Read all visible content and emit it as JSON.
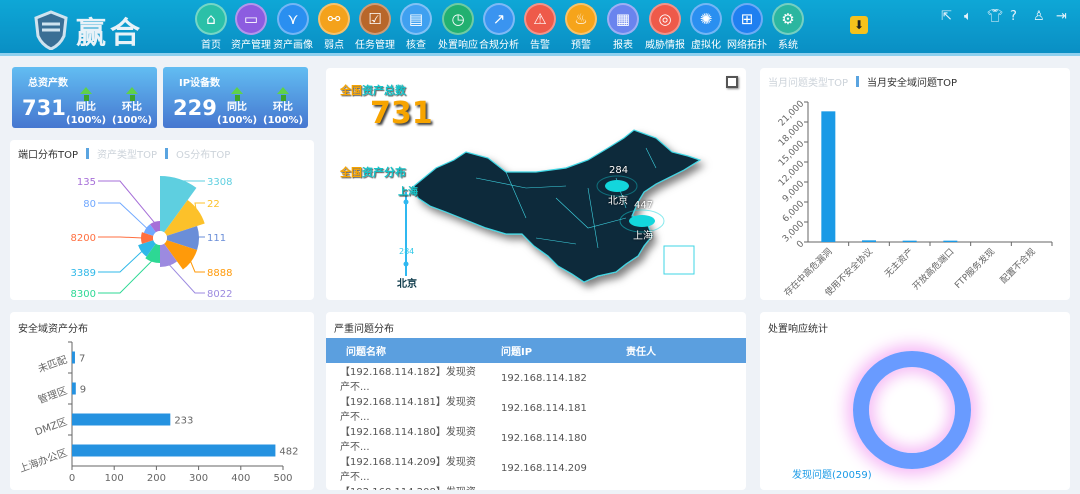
{
  "header": {
    "logo_text": "赢合",
    "nav": [
      {
        "label": "首页",
        "icon": "home-icon",
        "color": "#2bc0a8"
      },
      {
        "label": "资产管理",
        "icon": "monitor-icon",
        "color": "#8c5ce0"
      },
      {
        "label": "资产画像",
        "icon": "graph-icon",
        "color": "#2a8ff0"
      },
      {
        "label": "弱点",
        "icon": "broken-link-icon",
        "color": "#f4a21c"
      },
      {
        "label": "任务管理",
        "icon": "clipboard-icon",
        "color": "#b8672a"
      },
      {
        "label": "核查",
        "icon": "checklist-icon",
        "color": "#3fa0f0"
      },
      {
        "label": "处置响应",
        "icon": "stopwatch-icon",
        "color": "#22b070"
      },
      {
        "label": "合规分析",
        "icon": "trend-icon",
        "color": "#3a94f0"
      },
      {
        "label": "告警",
        "icon": "warning-icon",
        "color": "#ee5a4a"
      },
      {
        "label": "预警",
        "icon": "alarm-light-icon",
        "color": "#f6a41a"
      },
      {
        "label": "报表",
        "icon": "report-icon",
        "color": "#6a84ee"
      },
      {
        "label": "威胁情报",
        "icon": "radar-icon",
        "color": "#ee5a4a"
      },
      {
        "label": "虚拟化",
        "icon": "network-hub-icon",
        "color": "#2a8ff0"
      },
      {
        "label": "网络拓扑",
        "icon": "topology-icon",
        "color": "#1f7ff0"
      },
      {
        "label": "系统",
        "icon": "gear-icon",
        "color": "#2bb6a0"
      }
    ],
    "tools": [
      "external-link-icon",
      "volume-icon",
      "shirt-icon",
      "help-icon",
      "user-icon",
      "logout-icon"
    ]
  },
  "cards": [
    {
      "title": "总资产数",
      "value": "731",
      "yoy_label": "同比",
      "yoy": "(100%)",
      "mom_label": "环比",
      "mom": "(100%)"
    },
    {
      "title": "IP设备数",
      "value": "229",
      "yoy_label": "同比",
      "yoy": "(100%)",
      "mom_label": "环比",
      "mom": "(100%)"
    }
  ],
  "port_panel": {
    "tabs": [
      "端口分布TOP",
      "资产类型TOP",
      "OS分布TOP"
    ]
  },
  "map_panel": {
    "total_title_a": "全国",
    "total_title_b": "资产总数",
    "total": "731",
    "dist_title_a": "全国",
    "dist_title_b": "资产分布",
    "legend_top": "上海",
    "legend_mid": "284",
    "legend_bottom": "北京",
    "points": [
      {
        "city": "北京",
        "value": "284"
      },
      {
        "city": "上海",
        "value": "447"
      }
    ]
  },
  "issue_panel": {
    "tabs": [
      "当月问题类型TOP",
      "当月安全域问题TOP"
    ]
  },
  "domain_panel": {
    "title": "安全域资产分布"
  },
  "severe_panel": {
    "title": "严重问题分布",
    "columns": [
      "问题名称",
      "问题IP",
      "责任人"
    ],
    "rows": [
      [
        "【192.168.114.182】发现资产不...",
        "192.168.114.182",
        ""
      ],
      [
        "【192.168.114.181】发现资产不...",
        "192.168.114.181",
        ""
      ],
      [
        "【192.168.114.180】发现资产不...",
        "192.168.114.180",
        ""
      ],
      [
        "【192.168.114.209】发现资产不...",
        "192.168.114.209",
        ""
      ],
      [
        "【192.168.114.208】发现资产不...",
        "192.168.114.208",
        ""
      ]
    ]
  },
  "response_panel": {
    "title": "处置响应统计",
    "legend": "发现问题(20059)"
  },
  "chart_data": [
    {
      "type": "pie",
      "variant": "rose",
      "labels": [
        "3308",
        "22",
        "111",
        "8888",
        "8022",
        "8300",
        "3389",
        "8200",
        "80",
        "135"
      ],
      "values": [
        55,
        40,
        32,
        32,
        22,
        18,
        16,
        12,
        10,
        10
      ],
      "colors": [
        "#5ecfe0",
        "#fcc12a",
        "#6a8ed8",
        "#ff9a0a",
        "#9c8ae0",
        "#2dd894",
        "#2fb8e8",
        "#ff6f40",
        "#70a8ff",
        "#a66fd8"
      ]
    },
    {
      "type": "bar",
      "categories": [
        "存在中高危漏洞",
        "使用不安全协议",
        "无主资产",
        "开放高危端口",
        "FTP服务发现",
        "配置不合规"
      ],
      "values": [
        19600,
        250,
        200,
        200,
        0,
        0
      ],
      "yticks": [
        "0",
        "3,000",
        "6,000",
        "9,000",
        "12,000",
        "15,000",
        "18,000",
        "21,000"
      ],
      "ylim": [
        0,
        21000
      ],
      "color": "#1a9ae6"
    },
    {
      "type": "bar",
      "orientation": "horizontal",
      "categories": [
        "未匹配",
        "管理区",
        "DMZ区",
        "上海办公区"
      ],
      "values": [
        7,
        9,
        233,
        482
      ],
      "xlim": [
        0,
        500
      ],
      "xticks": [
        "0",
        "100",
        "200",
        "300",
        "400",
        "500"
      ],
      "color": "#2592e0"
    },
    {
      "type": "pie",
      "variant": "donut",
      "labels": [
        "发现问题"
      ],
      "values": [
        20059
      ],
      "colors": [
        "#699bff"
      ]
    }
  ]
}
